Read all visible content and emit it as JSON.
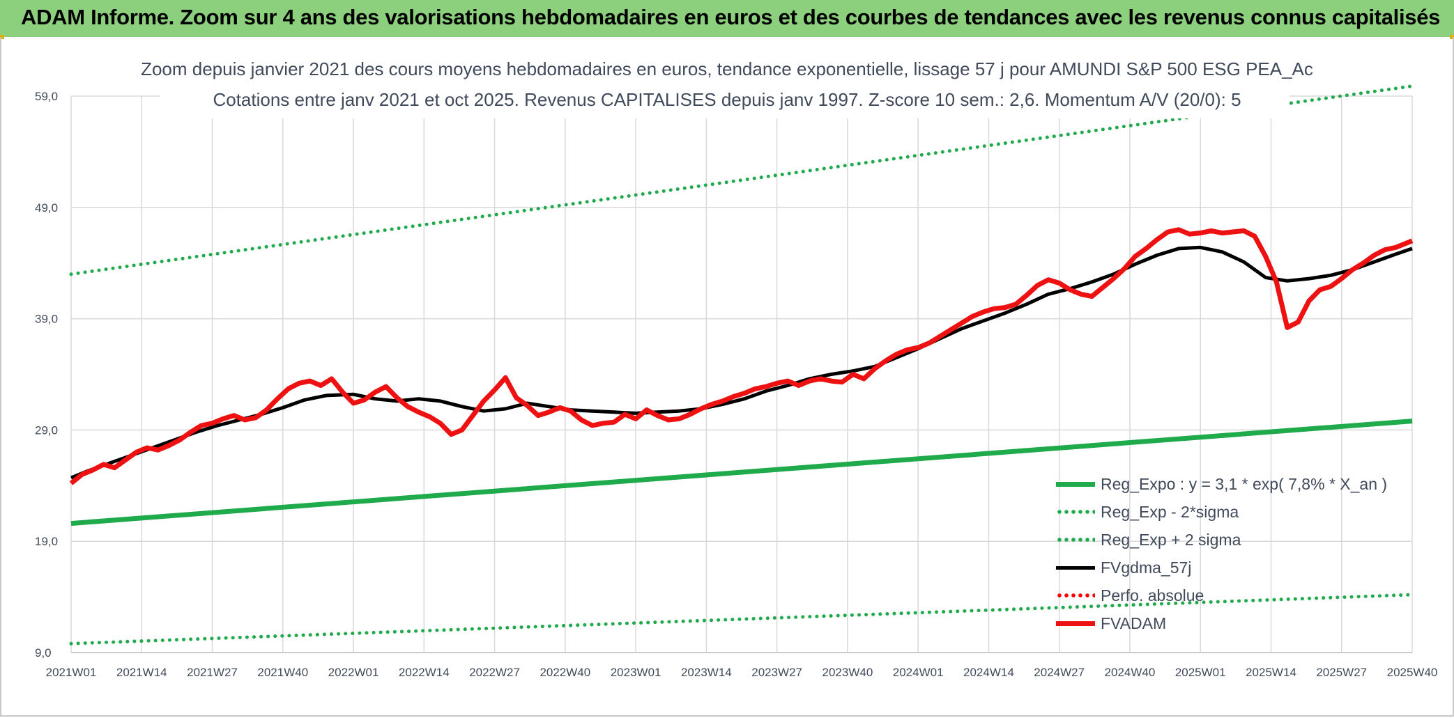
{
  "banner": {
    "title": "ADAM Informe. Zoom sur 4 ans des valorisations hebdomadaires en euros et des courbes de tendances avec les revenus connus capitalisés"
  },
  "chart_data": {
    "type": "line",
    "title": "Zoom depuis janvier 2021 des cours moyens hebdomadaires en euros, tendance exponentielle, lissage 57 j pour AMUNDI S&P 500 ESG PEA_Ac",
    "subtitle": "Cotations entre janv 2021 et oct 2025. Revenus CAPITALISES depuis janv 1997. Z-score 10 sem.: 2,6. Momentum A/V (20/0): 5",
    "xlabel": "",
    "ylabel": "",
    "ylim": [
      9,
      59
    ],
    "yticks": [
      "9,0",
      "19,0",
      "29,0",
      "39,0",
      "49,0",
      "59,0"
    ],
    "xticks": [
      "2021W01",
      "2021W14",
      "2021W27",
      "2021W40",
      "2022W01",
      "2022W14",
      "2022W27",
      "2022W40",
      "2023W01",
      "2023W14",
      "2023W27",
      "2023W40",
      "2024W01",
      "2024W14",
      "2024W27",
      "2024W40",
      "2025W01",
      "2025W14",
      "2025W27",
      "2025W40"
    ],
    "grid": true,
    "legend_position": "bottom-right",
    "series": [
      {
        "name": "Reg_Expo : y = 3,1 * exp( 7,8% *  X_an )",
        "color": "#1faa4b",
        "style": "solid-thick",
        "x": [
          "2021W01",
          "2025W40"
        ],
        "values": [
          20.6,
          29.8
        ]
      },
      {
        "name": "Reg_Exp - 2*sigma",
        "color": "#1faa4b",
        "style": "dotted",
        "x": [
          "2021W01",
          "2025W40"
        ],
        "values": [
          9.8,
          14.2
        ]
      },
      {
        "name": "Reg_Exp + 2 sigma",
        "color": "#1faa4b",
        "style": "dotted",
        "x": [
          "2021W01",
          "2025W40"
        ],
        "values": [
          43.0,
          59.9
        ]
      },
      {
        "name": "FVgdma_57j",
        "color": "#000000",
        "style": "solid",
        "x": [
          "2021W01",
          "2021W04",
          "2021W08",
          "2021W12",
          "2021W16",
          "2021W20",
          "2021W24",
          "2021W28",
          "2021W32",
          "2021W36",
          "2021W40",
          "2021W44",
          "2021W48",
          "2022W01",
          "2022W05",
          "2022W09",
          "2022W13",
          "2022W17",
          "2022W21",
          "2022W25",
          "2022W29",
          "2022W33",
          "2022W37",
          "2022W41",
          "2022W45",
          "2022W49",
          "2023W01",
          "2023W05",
          "2023W09",
          "2023W13",
          "2023W17",
          "2023W21",
          "2023W25",
          "2023W29",
          "2023W33",
          "2023W37",
          "2023W41",
          "2023W45",
          "2023W49",
          "2024W01",
          "2024W05",
          "2024W09",
          "2024W13",
          "2024W17",
          "2024W21",
          "2024W25",
          "2024W29",
          "2024W33",
          "2024W37",
          "2024W41",
          "2024W45",
          "2024W49",
          "2025W01",
          "2025W05",
          "2025W09",
          "2025W13",
          "2025W17",
          "2025W21",
          "2025W25",
          "2025W29",
          "2025W33",
          "2025W37",
          "2025W40"
        ],
        "values": [
          24.7,
          25.3,
          26.0,
          26.7,
          27.4,
          28.1,
          28.8,
          29.4,
          29.9,
          30.4,
          31.0,
          31.7,
          32.1,
          32.2,
          31.8,
          31.6,
          31.8,
          31.6,
          31.1,
          30.7,
          30.9,
          31.4,
          31.1,
          30.8,
          30.7,
          30.6,
          30.5,
          30.6,
          30.7,
          30.9,
          31.3,
          31.8,
          32.5,
          33.0,
          33.6,
          34.0,
          34.3,
          34.7,
          35.5,
          36.3,
          37.2,
          38.1,
          38.8,
          39.5,
          40.3,
          41.2,
          41.7,
          42.3,
          43.0,
          43.9,
          44.7,
          45.3,
          45.4,
          45.0,
          44.1,
          42.7,
          42.4,
          42.6,
          42.9,
          43.4,
          44.1,
          44.8,
          45.3
        ]
      },
      {
        "name": "Perfo. absolue",
        "color": "#ff0000",
        "style": "dotted",
        "x": [],
        "values": []
      },
      {
        "name": "FVADAM",
        "color": "#ee1111",
        "style": "solid-thick",
        "x": [
          "2021W01",
          "2021W03",
          "2021W05",
          "2021W07",
          "2021W09",
          "2021W11",
          "2021W13",
          "2021W15",
          "2021W17",
          "2021W19",
          "2021W21",
          "2021W23",
          "2021W25",
          "2021W27",
          "2021W29",
          "2021W31",
          "2021W33",
          "2021W35",
          "2021W37",
          "2021W39",
          "2021W41",
          "2021W43",
          "2021W45",
          "2021W47",
          "2021W49",
          "2021W51",
          "2022W01",
          "2022W03",
          "2022W05",
          "2022W07",
          "2022W09",
          "2022W11",
          "2022W13",
          "2022W15",
          "2022W17",
          "2022W19",
          "2022W21",
          "2022W23",
          "2022W25",
          "2022W27",
          "2022W29",
          "2022W31",
          "2022W33",
          "2022W35",
          "2022W37",
          "2022W39",
          "2022W41",
          "2022W43",
          "2022W45",
          "2022W47",
          "2022W49",
          "2022W51",
          "2023W01",
          "2023W03",
          "2023W05",
          "2023W07",
          "2023W09",
          "2023W11",
          "2023W13",
          "2023W15",
          "2023W17",
          "2023W19",
          "2023W21",
          "2023W23",
          "2023W25",
          "2023W27",
          "2023W29",
          "2023W31",
          "2023W33",
          "2023W35",
          "2023W37",
          "2023W39",
          "2023W41",
          "2023W43",
          "2023W45",
          "2023W47",
          "2023W49",
          "2023W51",
          "2024W01",
          "2024W03",
          "2024W05",
          "2024W07",
          "2024W09",
          "2024W11",
          "2024W13",
          "2024W15",
          "2024W17",
          "2024W19",
          "2024W21",
          "2024W23",
          "2024W25",
          "2024W27",
          "2024W29",
          "2024W31",
          "2024W33",
          "2024W35",
          "2024W37",
          "2024W39",
          "2024W41",
          "2024W43",
          "2024W45",
          "2024W47",
          "2024W49",
          "2024W51",
          "2025W01",
          "2025W03",
          "2025W05",
          "2025W07",
          "2025W09",
          "2025W11",
          "2025W13",
          "2025W15",
          "2025W17",
          "2025W19",
          "2025W21",
          "2025W23",
          "2025W25",
          "2025W27",
          "2025W29",
          "2025W31",
          "2025W33",
          "2025W35",
          "2025W37",
          "2025W40"
        ],
        "values": [
          24.2,
          25.0,
          25.4,
          25.9,
          25.6,
          26.3,
          27.0,
          27.4,
          27.2,
          27.6,
          28.1,
          28.8,
          29.4,
          29.6,
          30.0,
          30.3,
          29.9,
          30.1,
          30.8,
          31.8,
          32.7,
          33.2,
          33.4,
          33.0,
          33.6,
          32.4,
          31.4,
          31.7,
          32.4,
          32.9,
          31.9,
          31.1,
          30.6,
          30.2,
          29.6,
          28.6,
          29.0,
          30.3,
          31.6,
          32.6,
          33.7,
          31.9,
          31.2,
          30.3,
          30.6,
          31.0,
          30.7,
          29.9,
          29.4,
          29.6,
          29.7,
          30.4,
          30.0,
          30.8,
          30.3,
          29.9,
          30.0,
          30.4,
          30.9,
          31.3,
          31.6,
          32.0,
          32.3,
          32.7,
          32.9,
          33.2,
          33.4,
          33.0,
          33.4,
          33.6,
          33.4,
          33.3,
          34.0,
          33.6,
          34.5,
          35.2,
          35.8,
          36.2,
          36.4,
          36.8,
          37.4,
          38.0,
          38.6,
          39.2,
          39.6,
          39.9,
          40.0,
          40.3,
          41.1,
          42.0,
          42.5,
          42.2,
          41.6,
          41.2,
          41.0,
          41.8,
          42.6,
          43.5,
          44.6,
          45.3,
          46.1,
          46.8,
          47.0,
          46.6,
          46.7,
          46.9,
          46.7,
          46.8,
          46.9,
          46.4,
          44.6,
          42.3,
          38.2,
          38.7,
          40.6,
          41.6,
          41.9,
          42.6,
          43.4,
          44.0,
          44.7,
          45.2,
          45.4,
          46.0
        ]
      }
    ]
  }
}
